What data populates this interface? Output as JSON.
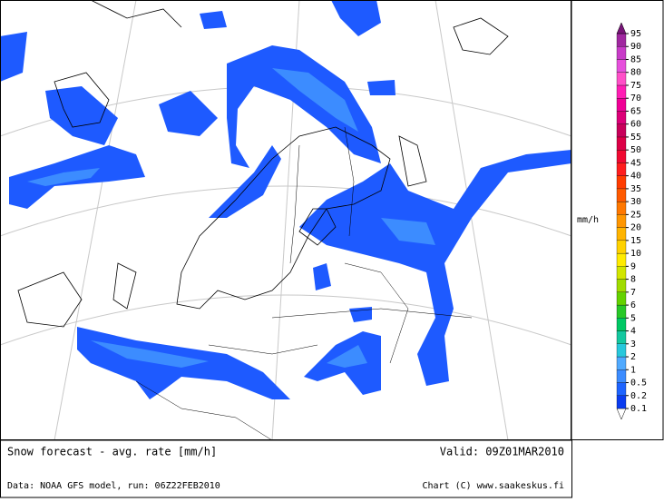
{
  "header": {
    "title": "Snow forecast - avg. rate [mm/h]",
    "valid": "Valid: 09Z01MAR2010"
  },
  "footer": {
    "source": "Data: NOAA GFS model, run: 06Z22FEB2010",
    "credit": "Chart (C) www.saakeskus.fi"
  },
  "legend": {
    "unit": "mm/h",
    "levels": [
      0.1,
      0.2,
      0.5,
      1,
      2,
      3,
      4,
      5,
      6,
      7,
      8,
      9,
      10,
      15,
      20,
      25,
      30,
      35,
      40,
      45,
      50,
      55,
      60,
      65,
      70,
      75,
      80,
      85,
      90,
      95
    ],
    "colors": [
      "#0a3cf0",
      "#1e64ff",
      "#3c8cff",
      "#50aaff",
      "#28c8dc",
      "#14c8a0",
      "#00c864",
      "#28c828",
      "#64d200",
      "#a0dc00",
      "#d2e600",
      "#ffeb00",
      "#ffd200",
      "#ffb400",
      "#ff9600",
      "#ff7800",
      "#ff5a00",
      "#ff3c00",
      "#ff1e1e",
      "#f00a32",
      "#dc0046",
      "#c8005a",
      "#dc0078",
      "#f00096",
      "#ff1eb4",
      "#ff50c8",
      "#e650dc",
      "#c83cc8",
      "#a028a0"
    ],
    "above_color": "#781478"
  }
}
